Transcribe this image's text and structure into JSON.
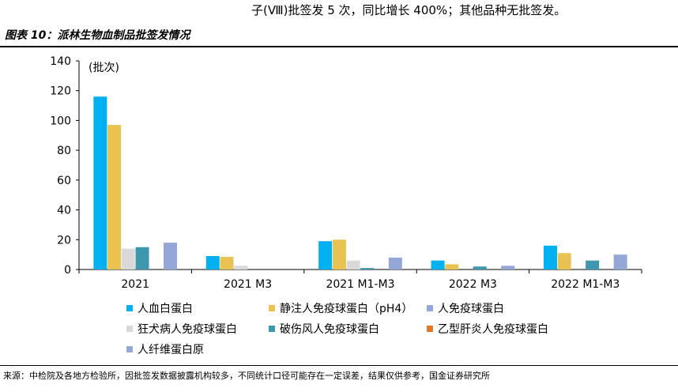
{
  "header": {
    "top_text": "子(Ⅷ)批签发 5 次，同比增长 400%；其他品种无批签发。",
    "figure_title": "图表 10：派林生物血制品批签发情况"
  },
  "source_note": "来源：中检院及各地方检验所，因批签发数据披露机构较多，不同统计口径可能存在一定误差，结果仅供参考，国金证券研究所",
  "chart_data": {
    "type": "bar",
    "unit_label": "(批次)",
    "ylim": [
      0,
      140
    ],
    "yticks": [
      0,
      20,
      40,
      60,
      80,
      100,
      120,
      140
    ],
    "grid": false,
    "legend_position": "bottom",
    "categories": [
      "2021",
      "2021 M3",
      "2021 M1-M3",
      "2022 M3",
      "2022 M1-M3"
    ],
    "series": [
      {
        "name": "人血白蛋白",
        "color": "#00b0f0",
        "values": [
          116,
          9,
          19,
          6,
          16
        ]
      },
      {
        "name": "静注人免疫球蛋白（pH4）",
        "color": "#e8c352",
        "values": [
          97,
          8.5,
          20,
          3.5,
          11
        ]
      },
      {
        "name": "狂犬病人免疫球蛋白",
        "color": "#d9d9d9",
        "values": [
          14,
          2.5,
          6,
          0,
          0
        ]
      },
      {
        "name": "破伤风人免疫球蛋白",
        "color": "#3d97ad",
        "values": [
          15,
          0,
          1,
          2,
          6
        ]
      },
      {
        "name": "乙型肝炎人免疫球蛋白",
        "color": "#e07b2e",
        "values": [
          0,
          0,
          0,
          0,
          0
        ]
      },
      {
        "name": "人纤维蛋白原",
        "color": "#95a7d6",
        "values": [
          18,
          0,
          8,
          2.5,
          10
        ]
      }
    ],
    "legend_order": [
      {
        "name": "人血白蛋白",
        "color": "#00b0f0"
      },
      {
        "name": "静注人免疫球蛋白（pH4）",
        "color": "#e8c352"
      },
      {
        "name": "人免疫球蛋白",
        "color": "#95a7d6"
      },
      {
        "name": "狂犬病人免疫球蛋白",
        "color": "#d9d9d9"
      },
      {
        "name": "破伤风人免疫球蛋白",
        "color": "#3d97ad"
      },
      {
        "name": "乙型肝炎人免疫球蛋白",
        "color": "#e07b2e"
      },
      {
        "name": "人纤维蛋白原",
        "color": "#95a7d6"
      }
    ]
  }
}
